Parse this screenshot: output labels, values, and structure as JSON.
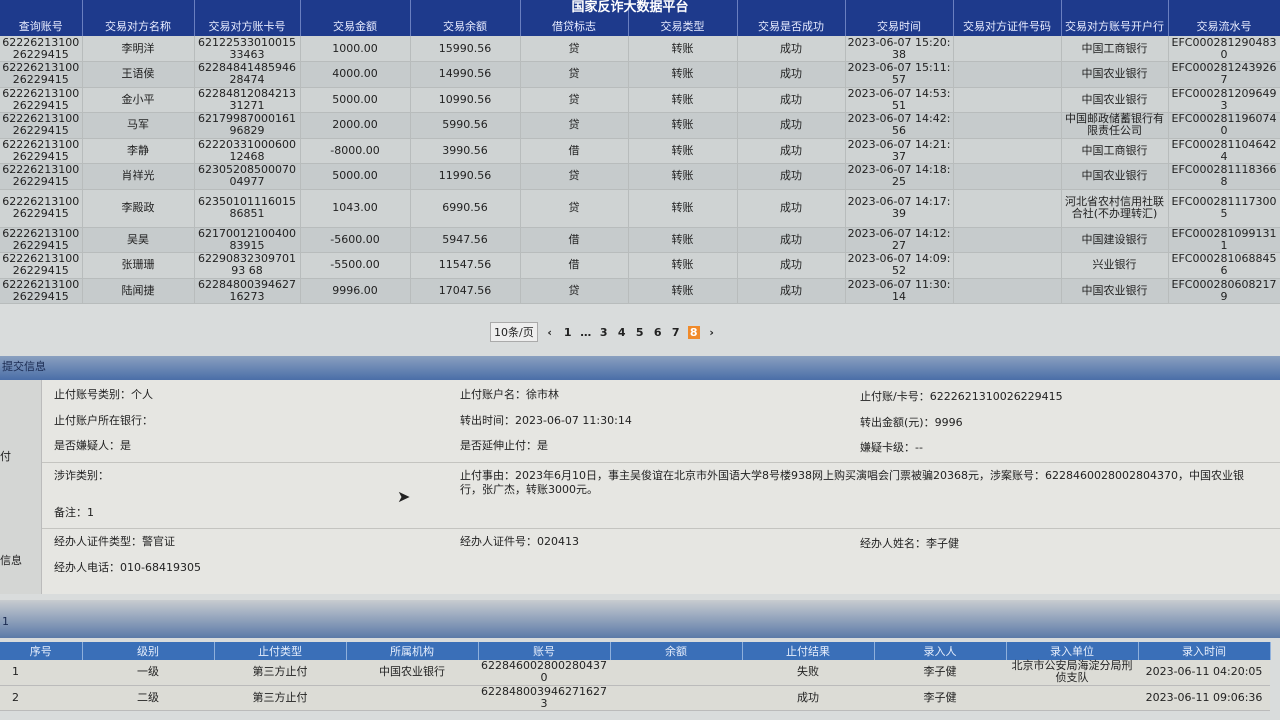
{
  "title": "国家反诈大数据平台",
  "transactions": {
    "headers": [
      "查询账号",
      "交易对方名称",
      "交易对方账卡号",
      "交易金额",
      "交易余额",
      "借贷标志",
      "交易类型",
      "交易是否成功",
      "交易时间",
      "交易对方证件号码",
      "交易对方账号开户行",
      "交易流水号"
    ],
    "rows": [
      [
        "6222621310026229415",
        "李明洋",
        "6212253301001533463",
        "1000.00",
        "15990.56",
        "贷",
        "转账",
        "成功",
        "2023-06-07 15:20:38",
        "",
        "中国工商银行",
        "EFC0002812904830"
      ],
      [
        "6222621310026229415",
        "王语侯",
        "6228484148594628474",
        "4000.00",
        "14990.56",
        "贷",
        "转账",
        "成功",
        "2023-06-07 15:11:57",
        "",
        "中国农业银行",
        "EFC0002812439267"
      ],
      [
        "6222621310026229415",
        "金小平",
        "6228481208421331271",
        "5000.00",
        "10990.56",
        "贷",
        "转账",
        "成功",
        "2023-06-07 14:53:51",
        "",
        "中国农业银行",
        "EFC0002812096493"
      ],
      [
        "6222621310026229415",
        "马军",
        "6217998700016196829",
        "2000.00",
        "5990.56",
        "贷",
        "转账",
        "成功",
        "2023-06-07 14:42:56",
        "",
        "中国邮政储蓄银行有限责任公司",
        "EFC0002811960740"
      ],
      [
        "6222621310026229415",
        "李静",
        "6222033100060012468",
        "-8000.00",
        "3990.56",
        "借",
        "转账",
        "成功",
        "2023-06-07 14:21:37",
        "",
        "中国工商银行",
        "EFC0002811046424"
      ],
      [
        "6222621310026229415",
        "肖祥光",
        "6230520850007004977",
        "5000.00",
        "11990.56",
        "贷",
        "转账",
        "成功",
        "2023-06-07 14:18:25",
        "",
        "中国农业银行",
        "EFC0002811183668"
      ],
      [
        "6222621310026229415",
        "李殿政",
        "6235010111601586851",
        "1043.00",
        "6990.56",
        "贷",
        "转账",
        "成功",
        "2023-06-07 14:17:39",
        "",
        "河北省农村信用社联合社(不办理转汇)",
        "EFC0002811173005"
      ],
      [
        "6222621310026229415",
        "吴昊",
        "6217001210040083915",
        "-5600.00",
        "5947.56",
        "借",
        "转账",
        "成功",
        "2023-06-07 14:12:27",
        "",
        "中国建设银行",
        "EFC0002810991311"
      ],
      [
        "6222621310026229415",
        "张珊珊",
        "6229083230970193 68",
        "-5500.00",
        "11547.56",
        "借",
        "转账",
        "成功",
        "2023-06-07 14:09:52",
        "",
        "兴业银行",
        "EFC0002810688456"
      ],
      [
        "6222621310026229415",
        "陆闻捷",
        "6228480039462716273",
        "9996.00",
        "17047.56",
        "贷",
        "转账",
        "成功",
        "2023-06-07 11:30:14",
        "",
        "中国农业银行",
        "EFC0002806082179"
      ]
    ]
  },
  "pagination": {
    "page_size": "10条/页",
    "pages": [
      "1",
      "…",
      "3",
      "4",
      "5",
      "6",
      "7",
      "8"
    ],
    "current": "8",
    "prev": "‹",
    "next": "›",
    "accent": "#f08a2a"
  },
  "submit_section": {
    "title": "提交信息",
    "side_labels": [
      "付",
      "信息"
    ],
    "fields": {
      "account_type": "止付账号类别：个人",
      "account_name": "止付账户名：徐市林",
      "card_no": "止付账/卡号：6222621310026229415",
      "bank": "止付账户所在银行：",
      "out_time": "转出时间：2023-06-07 11:30:14",
      "out_amount": "转出金额(元)：9996",
      "suspect": "是否嫌疑人：是",
      "extend": "是否延伸止付：是",
      "card_level": "嫌疑卡级：--",
      "fraud_type": "涉诈类别：",
      "reason": "止付事由：2023年6月10日，事主吴俊谊在北京市外国语大学8号楼938网上购买演唱会门票被骗20368元，涉案账号：6228460028002804370，中国农业银行，张广杰，转账3000元。",
      "remark": "备注：1",
      "officer_id_type": "经办人证件类型：警官证",
      "officer_id": "经办人证件号：020413",
      "officer_name": "经办人姓名：李子健",
      "officer_phone": "经办人电话：010-68419305"
    }
  },
  "stop_section": {
    "title": "1",
    "headers": [
      "序号",
      "级别",
      "止付类型",
      "所属机构",
      "账号",
      "余额",
      "止付结果",
      "录入人",
      "录入单位",
      "录入时间"
    ],
    "rows": [
      [
        "1",
        "一级",
        "第三方止付",
        "中国农业银行",
        "6228460028002804370",
        "",
        "失败",
        "李子健",
        "北京市公安局海淀分局刑侦支队",
        "2023-06-11 04:20:05"
      ],
      [
        "2",
        "二级",
        "第三方止付",
        "",
        "6228480039462716273",
        "",
        "成功",
        "李子健",
        "",
        "2023-06-11 09:06:36"
      ]
    ]
  }
}
